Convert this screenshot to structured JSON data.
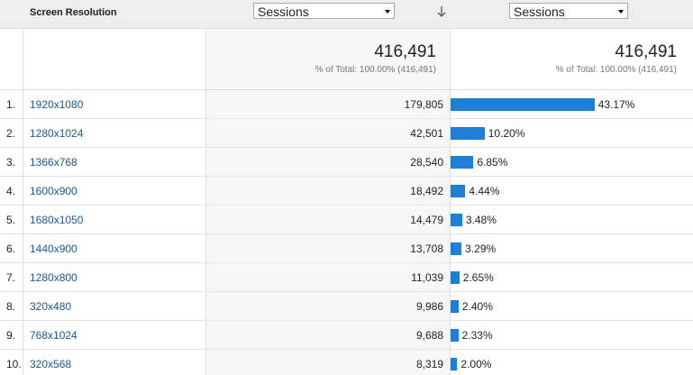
{
  "header": {
    "dimension": "Screen Resolution",
    "metric_select": "Sessions",
    "compare_select": "Sessions"
  },
  "totals": {
    "sessions": {
      "value": "416,491",
      "note": "% of Total: 100.00% (416,491)"
    },
    "share": {
      "value": "416,491",
      "note": "% of Total: 100.00% (416,491)"
    }
  },
  "table": {
    "rows": [
      {
        "rank": "1.",
        "resolution": "1920x1080",
        "sessions": "179,805",
        "share": 43.17,
        "share_label": "43.17%"
      },
      {
        "rank": "2.",
        "resolution": "1280x1024",
        "sessions": "42,501",
        "share": 10.2,
        "share_label": "10.20%"
      },
      {
        "rank": "3.",
        "resolution": "1366x768",
        "sessions": "28,540",
        "share": 6.85,
        "share_label": "6.85%"
      },
      {
        "rank": "4.",
        "resolution": "1600x900",
        "sessions": "18,492",
        "share": 4.44,
        "share_label": "4.44%"
      },
      {
        "rank": "5.",
        "resolution": "1680x1050",
        "sessions": "14,479",
        "share": 3.48,
        "share_label": "3.48%"
      },
      {
        "rank": "6.",
        "resolution": "1440x900",
        "sessions": "13,708",
        "share": 3.29,
        "share_label": "3.29%"
      },
      {
        "rank": "7.",
        "resolution": "1280x800",
        "sessions": "11,039",
        "share": 2.65,
        "share_label": "2.65%"
      },
      {
        "rank": "8.",
        "resolution": "320x480",
        "sessions": "9,986",
        "share": 2.4,
        "share_label": "2.40%"
      },
      {
        "rank": "9.",
        "resolution": "768x1024",
        "sessions": "9,688",
        "share": 2.33,
        "share_label": "2.33%"
      },
      {
        "rank": "10.",
        "resolution": "320x568",
        "sessions": "8,319",
        "share": 2.0,
        "share_label": "2.00%"
      }
    ]
  }
}
